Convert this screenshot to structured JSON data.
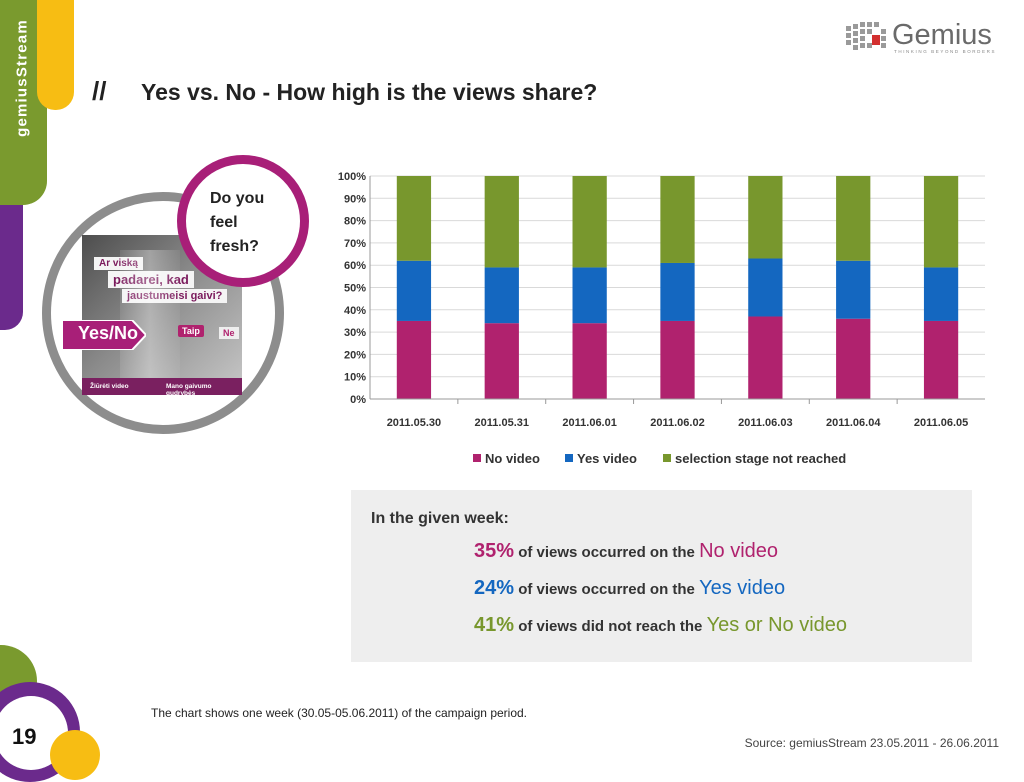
{
  "brand": {
    "side_label": "gemiusStream",
    "logo_text": "Gemius",
    "logo_tagline": "THINKING BEYOND BORDERS"
  },
  "header": {
    "mark": "//",
    "title": "Yes vs. No - How high is the views share?"
  },
  "graphic": {
    "bubble_text": "Do you feel fresh?",
    "photo_line1": "Ar viską",
    "photo_line2": "padarei, kad",
    "photo_line3": "jaustumeisi gaivi?",
    "yes_no": "Yes/No",
    "taip": "Taip",
    "ne": "Ne",
    "footer_left": "Žiūrėti video",
    "footer_right": "Mano gaivumo gudrybės"
  },
  "chart_data": {
    "type": "bar",
    "stacked": true,
    "categories": [
      "2011.05.30",
      "2011.05.31",
      "2011.06.01",
      "2011.06.02",
      "2011.06.03",
      "2011.06.04",
      "2011.06.05"
    ],
    "series": [
      {
        "name": "No video",
        "color": "#b0226e",
        "values": [
          35,
          34,
          34,
          35,
          37,
          36,
          35
        ]
      },
      {
        "name": "Yes video",
        "color": "#1467c0",
        "values": [
          27,
          25,
          25,
          26,
          26,
          26,
          24
        ]
      },
      {
        "name": "selection stage not reached",
        "color": "#78972d",
        "values": [
          38,
          41,
          41,
          39,
          37,
          38,
          41
        ]
      }
    ],
    "ylim": [
      0,
      100
    ],
    "yticks": [
      "0%",
      "10%",
      "20%",
      "30%",
      "40%",
      "50%",
      "60%",
      "70%",
      "80%",
      "90%",
      "100%"
    ],
    "grid": true,
    "legend_position": "bottom"
  },
  "summary": {
    "heading": "In the given week:",
    "rows": [
      {
        "pct": "35%",
        "text": " of views occurred on the ",
        "highlight": "No video"
      },
      {
        "pct": "24%",
        "text": " of views occurred on the ",
        "highlight": "Yes video"
      },
      {
        "pct": "41%",
        "text": " of views did not reach the ",
        "highlight": "Yes or No video"
      }
    ]
  },
  "footer": {
    "note": "The chart shows one week (30.05-05.06.2011) of the campaign period.",
    "source": "Source: gemiusStream 23.05.2011 - 26.06.2011",
    "page_number": "19"
  }
}
